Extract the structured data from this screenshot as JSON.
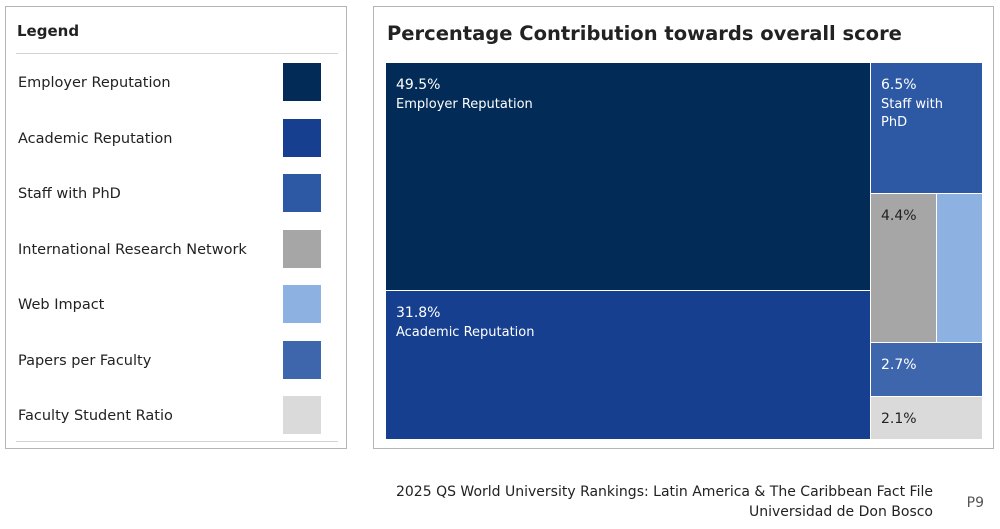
{
  "legend": {
    "title": "Legend",
    "items": [
      {
        "label": "Employer Reputation",
        "color": "#022b57"
      },
      {
        "label": "Academic Reputation",
        "color": "#163f8f"
      },
      {
        "label": "Staff with PhD",
        "color": "#2c58a4"
      },
      {
        "label": "International Research Network",
        "color": "#a6a6a6"
      },
      {
        "label": "Web Impact",
        "color": "#8db1e1"
      },
      {
        "label": "Papers per Faculty",
        "color": "#3d66ac"
      },
      {
        "label": "Faculty Student Ratio",
        "color": "#dadada"
      }
    ]
  },
  "chart_data": {
    "type": "treemap",
    "title": "Percentage Contribution towards overall score",
    "items": [
      {
        "name": "Employer Reputation",
        "value": 49.5,
        "value_label": "49.5%",
        "shown_name": "Employer Reputation",
        "color": "#022b57",
        "text_color": "#ffffff"
      },
      {
        "name": "Academic Reputation",
        "value": 31.8,
        "value_label": "31.8%",
        "shown_name": "Academic Reputation",
        "color": "#163f8f",
        "text_color": "#ffffff"
      },
      {
        "name": "Staff with PhD",
        "value": 6.5,
        "value_label": "6.5%",
        "shown_name": "Staff with PhD",
        "color": "#2c58a4",
        "text_color": "#ffffff"
      },
      {
        "name": "International Research Network",
        "value": 4.4,
        "value_label": "4.4%",
        "shown_name": "",
        "color": "#a6a6a6",
        "text_color": "#222222"
      },
      {
        "name": "Web Impact",
        "value": 3.0,
        "value_label": "",
        "shown_name": "",
        "color": "#8db1e1",
        "text_color": "#222222"
      },
      {
        "name": "Papers per Faculty",
        "value": 2.7,
        "value_label": "2.7%",
        "shown_name": "",
        "color": "#3d66ac",
        "text_color": "#ffffff"
      },
      {
        "name": "Faculty Student Ratio",
        "value": 2.1,
        "value_label": "2.1%",
        "shown_name": "",
        "color": "#dadada",
        "text_color": "#222222"
      }
    ]
  },
  "footer": {
    "line1": "2025 QS World University Rankings: Latin America & The Caribbean Fact File",
    "line2": "Universidad de Don Bosco",
    "page": "P9"
  }
}
